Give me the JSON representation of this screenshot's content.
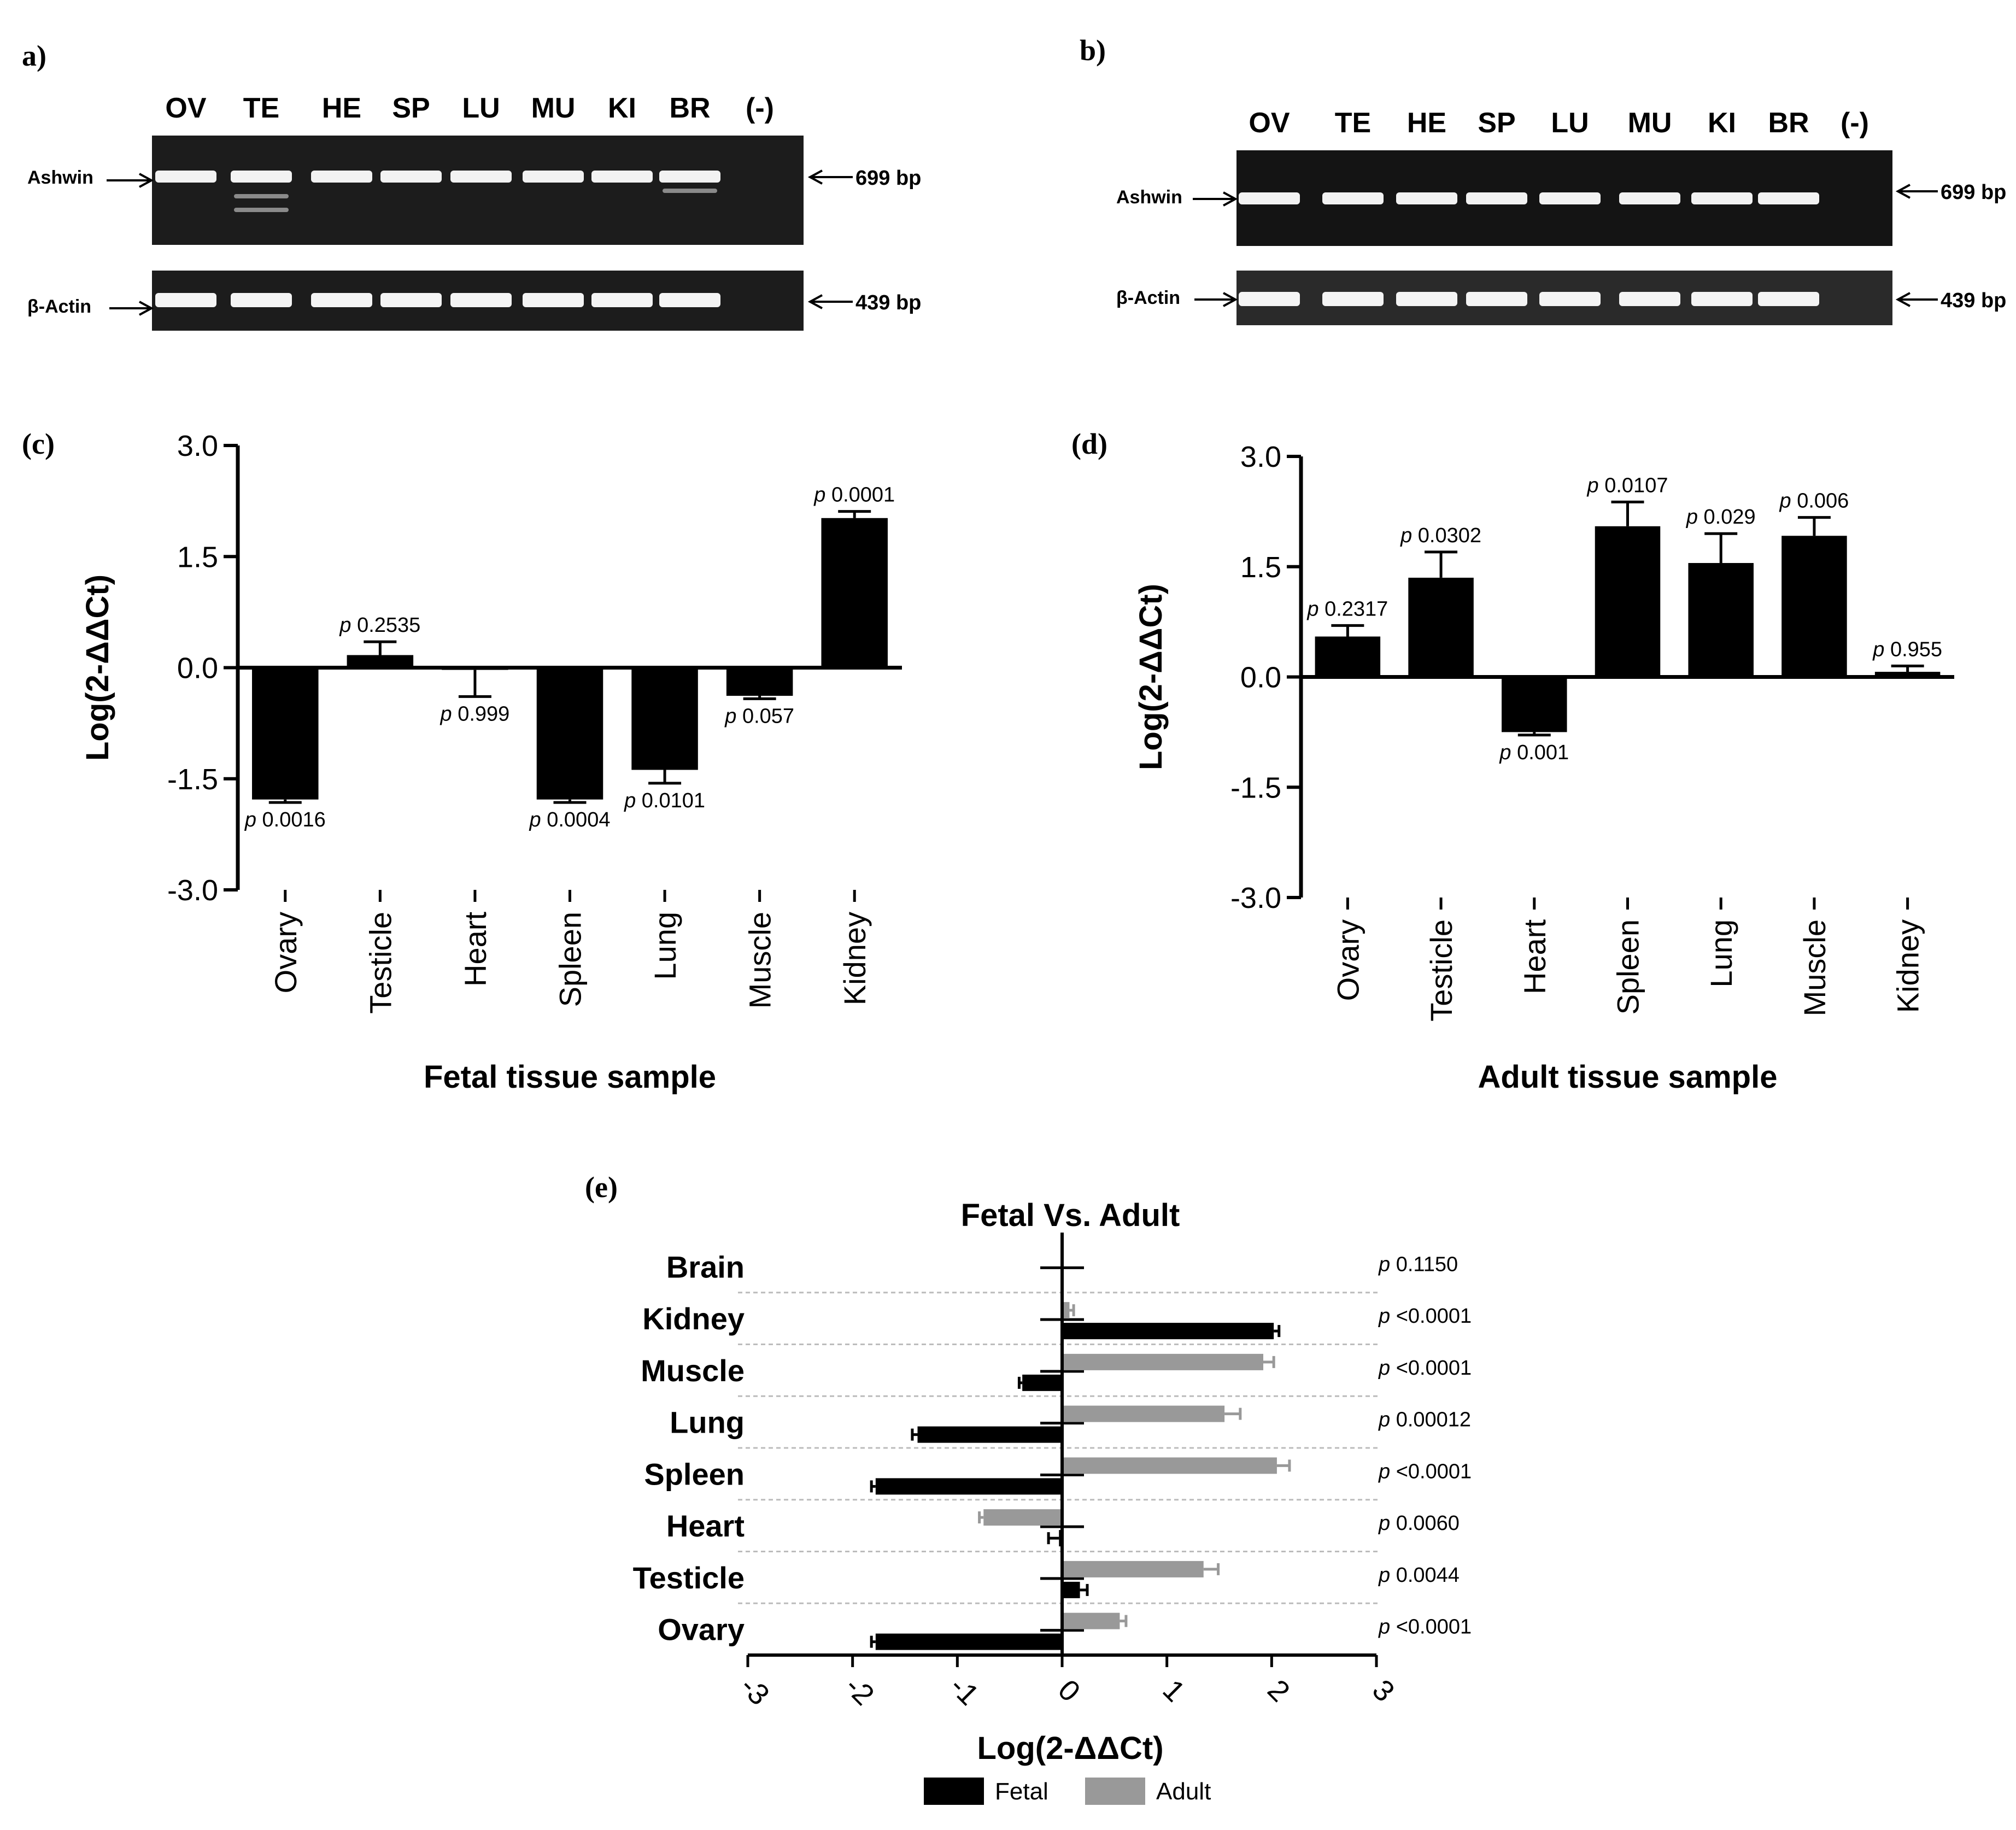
{
  "panels": {
    "a": {
      "label": "a)",
      "lanes": [
        "OV",
        "TE",
        "HE",
        "SP",
        "LU",
        "MU",
        "KI",
        "BR",
        "(-)"
      ],
      "genes": [
        "Ashwin",
        "β-Actin"
      ],
      "sizes": [
        "699 bp",
        "439 bp"
      ]
    },
    "b": {
      "label": "b)",
      "lanes": [
        "OV",
        "TE",
        "HE",
        "SP",
        "LU",
        "MU",
        "KI",
        "BR",
        "(-)"
      ],
      "genes": [
        "Ashwin",
        "β-Actin"
      ],
      "sizes": [
        "699 bp",
        "439 bp"
      ]
    },
    "c": {
      "label": "(c)"
    },
    "d": {
      "label": "(d)"
    },
    "e": {
      "label": "(e)"
    }
  },
  "chart_data": [
    {
      "id": "c",
      "type": "bar",
      "categories": [
        "Ovary",
        "Testicle",
        "Heart",
        "Spleen",
        "Lung",
        "Muscle",
        "Kidney"
      ],
      "values": [
        -1.78,
        0.17,
        -0.03,
        -1.78,
        -1.38,
        -0.38,
        2.02
      ],
      "errors": [
        0.04,
        0.18,
        0.36,
        0.04,
        0.18,
        0.04,
        0.09
      ],
      "pvalues": [
        "0.0016",
        "0.2535",
        "0.999",
        "0.0004",
        "0.0101",
        "0.057",
        "0.0001"
      ],
      "p_prefix": "p",
      "title": "",
      "xlabel": "Fetal tissue sample",
      "ylabel": "Log(2-ΔΔCt)",
      "ylim": [
        -3.0,
        3.0
      ],
      "yticks": [
        -3.0,
        -1.5,
        0.0,
        1.5,
        3.0
      ],
      "ytick_labels": [
        "-3.0",
        "-1.5",
        "0.0",
        "1.5",
        "3.0"
      ],
      "color": "#000000"
    },
    {
      "id": "d",
      "type": "bar",
      "categories": [
        "Ovary",
        "Testicle",
        "Heart",
        "Spleen",
        "Lung",
        "Muscle",
        "Kidney"
      ],
      "values": [
        0.55,
        1.35,
        -0.75,
        2.05,
        1.55,
        1.92,
        0.07
      ],
      "errors": [
        0.15,
        0.35,
        0.04,
        0.33,
        0.4,
        0.25,
        0.08
      ],
      "pvalues": [
        "0.2317",
        "0.0302",
        "0.001",
        "0.0107",
        "0.029",
        "0.006",
        "0.955"
      ],
      "p_prefix": "p",
      "title": "",
      "xlabel": "Adult tissue sample",
      "ylabel": "Log(2-ΔΔCt)",
      "ylim": [
        -3.0,
        3.0
      ],
      "yticks": [
        -3.0,
        -1.5,
        0.0,
        1.5,
        3.0
      ],
      "ytick_labels": [
        "-3.0",
        "-1.5",
        "0.0",
        "1.5",
        "3.0"
      ],
      "color": "#000000"
    },
    {
      "id": "e",
      "type": "bar",
      "orientation": "horizontal",
      "title": "Fetal Vs. Adult",
      "categories": [
        "Brain",
        "Kidney",
        "Muscle",
        "Lung",
        "Spleen",
        "Heart",
        "Testicle",
        "Ovary"
      ],
      "series": [
        {
          "name": "Fetal",
          "color": "#000000",
          "values": [
            0.0,
            2.02,
            -0.38,
            -1.38,
            -1.78,
            -0.03,
            0.17,
            -1.78
          ],
          "errors": [
            0.0,
            0.05,
            0.03,
            0.05,
            0.04,
            0.1,
            0.07,
            0.04
          ]
        },
        {
          "name": "Adult",
          "color": "#999999",
          "values": [
            0.0,
            0.07,
            1.92,
            1.55,
            2.05,
            -0.75,
            1.35,
            0.55
          ],
          "errors": [
            0.0,
            0.04,
            0.1,
            0.15,
            0.12,
            0.04,
            0.14,
            0.06
          ]
        }
      ],
      "pvalues": [
        "0.1150",
        "<0.0001",
        "<0.0001",
        "0.00012",
        "<0.0001",
        "0.0060",
        "0.0044",
        "<0.0001"
      ],
      "p_prefix": "p",
      "xlabel": "Log(2-ΔΔCt)",
      "xlim": [
        -3,
        3
      ],
      "xticks": [
        -3,
        -2,
        -1,
        0,
        1,
        2,
        3
      ],
      "xtick_labels": [
        "-3",
        "-2",
        "-1",
        "0",
        "1",
        "2",
        "3"
      ],
      "legend": [
        "Fetal",
        "Adult"
      ],
      "legend_position": "bottom"
    }
  ]
}
